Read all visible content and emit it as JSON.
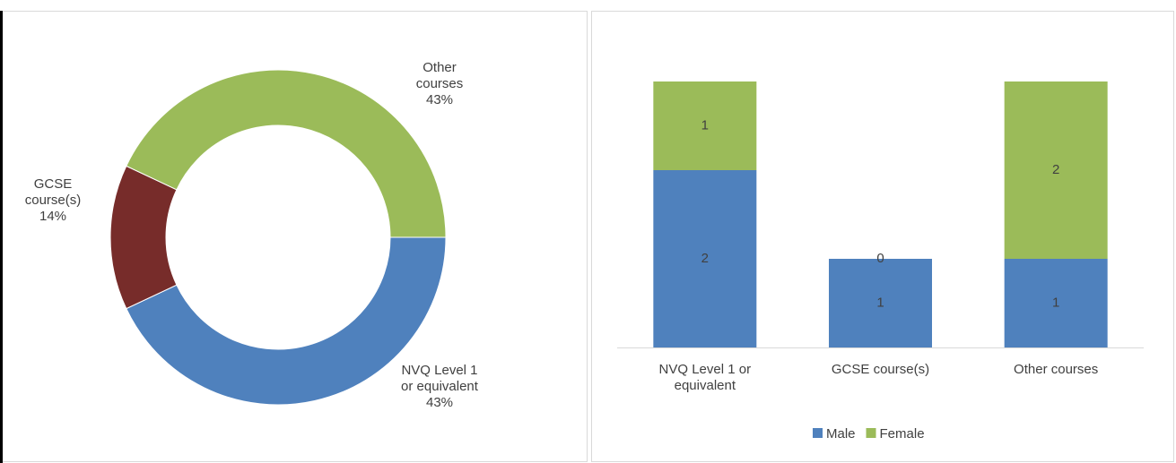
{
  "chart_data": [
    {
      "type": "donut",
      "categories": [
        "NVQ Level 1 or equivalent",
        "GCSE course(s)",
        "Other courses"
      ],
      "values": [
        43,
        14,
        43
      ],
      "value_labels": [
        "43%",
        "14%",
        "43%"
      ],
      "colors": [
        "#4f81bd",
        "#772c2a",
        "#9bbb59"
      ]
    },
    {
      "type": "stacked_bar",
      "categories": [
        "NVQ Level 1 or equivalent",
        "GCSE course(s)",
        "Other courses"
      ],
      "series": [
        {
          "name": "Male",
          "color": "#4f81bd",
          "values": [
            2,
            1,
            1
          ]
        },
        {
          "name": "Female",
          "color": "#9bbb59",
          "values": [
            1,
            0,
            2
          ]
        }
      ],
      "legend": "bottom"
    }
  ]
}
